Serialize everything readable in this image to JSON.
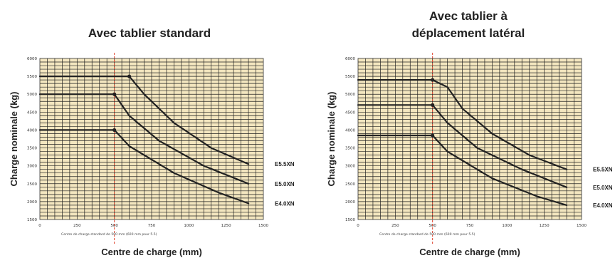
{
  "chart_data": [
    {
      "type": "line",
      "title_lines": [
        "Avec tablier standard"
      ],
      "xlabel": "Centre de charge (mm)",
      "ylabel": "Charge nominale (kg)",
      "note": "Centre de charge standard de 500 mm (600 mm pour 5.5)",
      "xlim": [
        0,
        1500
      ],
      "ylim": [
        1500,
        6000
      ],
      "xticks": [
        0,
        250,
        500,
        750,
        1000,
        1250,
        1500
      ],
      "yticks": [
        1500,
        2000,
        2500,
        3000,
        3500,
        4000,
        4500,
        5000,
        5500,
        6000
      ],
      "grid": true,
      "reference_x": 500,
      "series": [
        {
          "name": "E5.5XN",
          "x": [
            0,
            600,
            700,
            900,
            1150,
            1400
          ],
          "y": [
            5500,
            5500,
            5000,
            4200,
            3500,
            3050
          ]
        },
        {
          "name": "E5.0XN",
          "x": [
            0,
            500,
            600,
            800,
            1100,
            1400
          ],
          "y": [
            5000,
            5000,
            4400,
            3700,
            3000,
            2500
          ]
        },
        {
          "name": "E4.0XN",
          "x": [
            0,
            500,
            600,
            900,
            1200,
            1400
          ],
          "y": [
            4000,
            4000,
            3550,
            2800,
            2250,
            1950
          ]
        }
      ]
    },
    {
      "type": "line",
      "title_lines": [
        "Avec tablier à",
        "déplacement latéral"
      ],
      "xlabel": "Centre de charge (mm)",
      "ylabel": "Charge nominale (kg)",
      "note": "Centre de charge standard de 500 mm (600 mm pour 5.5)",
      "xlim": [
        0,
        1500
      ],
      "ylim": [
        1500,
        6000
      ],
      "xticks": [
        0,
        250,
        500,
        750,
        1000,
        1250,
        1500
      ],
      "yticks": [
        1500,
        2000,
        2500,
        3000,
        3500,
        4000,
        4500,
        5000,
        5500,
        6000
      ],
      "grid": true,
      "reference_x": 500,
      "series": [
        {
          "name": "E5.5XN",
          "x": [
            0,
            500,
            600,
            700,
            900,
            1150,
            1400
          ],
          "y": [
            5400,
            5400,
            5200,
            4600,
            3900,
            3300,
            2900
          ]
        },
        {
          "name": "E5.0XN",
          "x": [
            0,
            500,
            600,
            800,
            1100,
            1400
          ],
          "y": [
            4700,
            4700,
            4200,
            3500,
            2900,
            2400
          ]
        },
        {
          "name": "E4.0XN",
          "x": [
            0,
            500,
            600,
            900,
            1200,
            1400
          ],
          "y": [
            3850,
            3850,
            3400,
            2650,
            2150,
            1900
          ]
        }
      ]
    }
  ],
  "colors": {
    "plot_background": "#f3e6bf",
    "grid": "#222222",
    "curve": "#222222",
    "reference_line": "#e0402a"
  }
}
